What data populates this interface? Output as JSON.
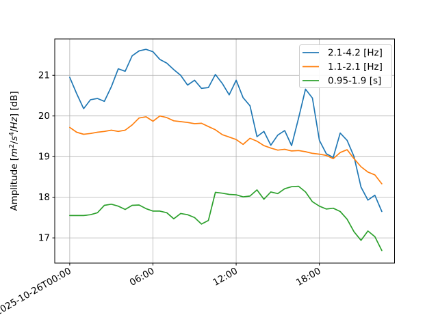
{
  "figure": {
    "background": "#ffffff",
    "axes_edge_color": "#000000",
    "grid_color": "#b0b0b0"
  },
  "ylabel_parts": {
    "pre": "Amplitude [",
    "m": "m",
    "m_exp": "2",
    "slash1": "/",
    "s": "s",
    "s_exp": "4",
    "slash2": "/",
    "hz": "Hz",
    "post": "] [dB]"
  },
  "chart_data": {
    "type": "line",
    "title": "",
    "xlabel": "",
    "ylabel": "Amplitude [m²/s⁴/Hz] [dB]",
    "x_unit": "hours since 2025-10-26T00:00",
    "grid": true,
    "legend_position": "upper right",
    "xlim": [
      -1.08,
      23.42
    ],
    "ylim": [
      16.38,
      21.895
    ],
    "x_ticks": [
      {
        "pos": 0,
        "label": "2025-10-26T00:00"
      },
      {
        "pos": 6,
        "label": "06:00"
      },
      {
        "pos": 12,
        "label": "12:00"
      },
      {
        "pos": 18,
        "label": "18:00"
      }
    ],
    "y_ticks": [
      {
        "pos": 17,
        "label": "17"
      },
      {
        "pos": 18,
        "label": "18"
      },
      {
        "pos": 19,
        "label": "19"
      },
      {
        "pos": 20,
        "label": "20"
      },
      {
        "pos": 21,
        "label": "21"
      }
    ],
    "x": [
      0,
      0.5,
      1,
      1.5,
      2,
      2.5,
      3,
      3.5,
      4,
      4.5,
      5,
      5.5,
      6,
      6.5,
      7,
      7.5,
      8,
      8.5,
      9,
      9.5,
      10,
      10.5,
      11,
      11.5,
      12,
      12.5,
      13,
      13.5,
      14,
      14.5,
      15,
      15.5,
      16,
      16.5,
      17,
      17.5,
      18,
      18.5,
      19,
      19.5,
      20,
      20.5,
      21,
      21.5,
      22,
      22.5
    ],
    "series": [
      {
        "name": "2.1-4.2 [Hz]",
        "color": "#1f77b4",
        "values": [
          20.95,
          20.55,
          20.18,
          20.4,
          20.43,
          20.36,
          20.72,
          21.16,
          21.1,
          21.48,
          21.6,
          21.64,
          21.58,
          21.39,
          21.3,
          21.14,
          21.0,
          20.76,
          20.88,
          20.68,
          20.7,
          21.02,
          20.8,
          20.52,
          20.88,
          20.45,
          20.25,
          19.49,
          19.62,
          19.28,
          19.53,
          19.64,
          19.27,
          19.95,
          20.66,
          20.44,
          19.4,
          19.07,
          18.98,
          19.58,
          19.4,
          19.0,
          18.25,
          17.93,
          18.05,
          17.65
        ]
      },
      {
        "name": "1.1-2.1 [Hz]",
        "color": "#ff7f0e",
        "values": [
          19.72,
          19.6,
          19.55,
          19.57,
          19.6,
          19.62,
          19.65,
          19.62,
          19.65,
          19.78,
          19.95,
          19.98,
          19.87,
          20.0,
          19.96,
          19.88,
          19.86,
          19.84,
          19.81,
          19.82,
          19.74,
          19.66,
          19.54,
          19.48,
          19.42,
          19.3,
          19.45,
          19.38,
          19.27,
          19.21,
          19.16,
          19.18,
          19.14,
          19.15,
          19.12,
          19.08,
          19.06,
          19.03,
          18.95,
          19.1,
          19.17,
          18.95,
          18.75,
          18.62,
          18.55,
          18.33
        ]
      },
      {
        "name": "0.95-1.9 [s]",
        "color": "#2ca02c",
        "values": [
          17.55,
          17.55,
          17.55,
          17.57,
          17.62,
          17.8,
          17.83,
          17.78,
          17.7,
          17.8,
          17.81,
          17.72,
          17.66,
          17.66,
          17.62,
          17.47,
          17.6,
          17.57,
          17.5,
          17.34,
          17.43,
          18.12,
          18.1,
          18.07,
          18.06,
          18.01,
          18.03,
          18.18,
          17.95,
          18.13,
          18.09,
          18.21,
          18.26,
          18.27,
          18.13,
          17.89,
          17.78,
          17.71,
          17.73,
          17.65,
          17.46,
          17.15,
          16.94,
          17.17,
          17.03,
          16.69
        ]
      }
    ]
  }
}
